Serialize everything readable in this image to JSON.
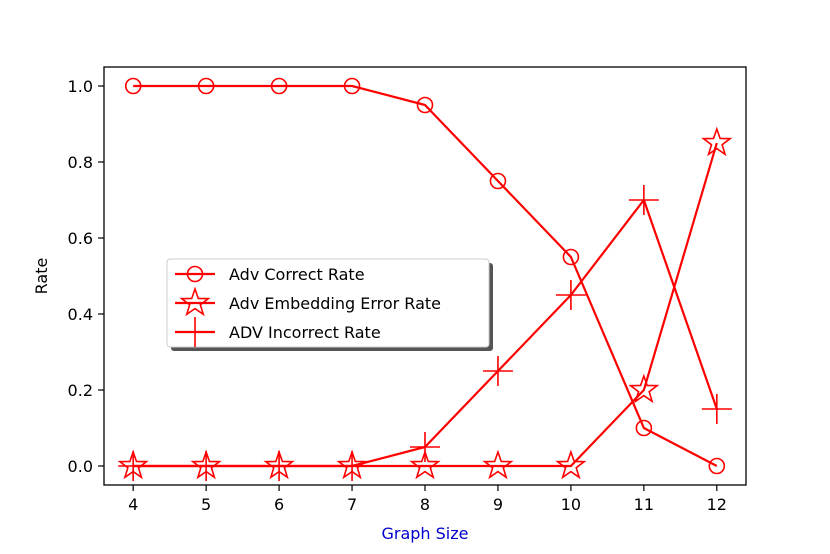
{
  "chart_data": {
    "type": "line",
    "title": "",
    "xlabel": "Graph Size",
    "ylabel": "Rate",
    "x": [
      4,
      5,
      6,
      7,
      8,
      9,
      10,
      11,
      12
    ],
    "xlim": [
      3.6,
      12.4
    ],
    "ylim": [
      -0.05,
      1.05
    ],
    "xticks": [
      "4",
      "5",
      "6",
      "7",
      "8",
      "9",
      "10",
      "11",
      "12"
    ],
    "yticks": [
      "0.0",
      "0.2",
      "0.4",
      "0.6",
      "0.8",
      "1.0"
    ],
    "grid": false,
    "legend_position": "center-left",
    "series": [
      {
        "name": "Adv Correct Rate",
        "marker": "circle",
        "values": [
          1.0,
          1.0,
          1.0,
          1.0,
          0.95,
          0.75,
          0.55,
          0.1,
          0.0
        ]
      },
      {
        "name": "Adv Embedding Error Rate",
        "marker": "star",
        "values": [
          0.0,
          0.0,
          0.0,
          0.0,
          0.0,
          0.0,
          0.0,
          0.2,
          0.85
        ]
      },
      {
        "name": "ADV Incorrect Rate",
        "marker": "plus",
        "values": [
          0.0,
          0.0,
          0.0,
          0.0,
          0.05,
          0.25,
          0.45,
          0.7,
          0.15
        ]
      }
    ],
    "colors": {
      "series": "#ff0000",
      "xlabel": "#0000cc",
      "ylabel": "#000000"
    }
  }
}
